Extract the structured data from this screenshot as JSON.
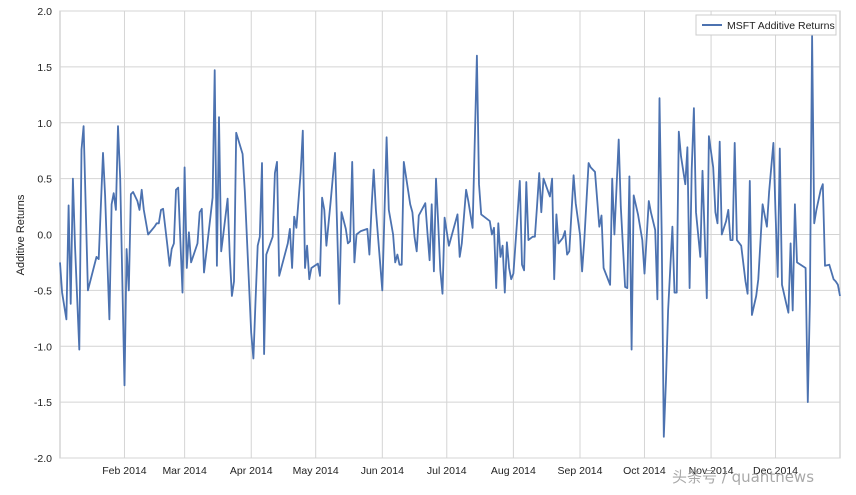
{
  "chart_data": {
    "type": "line",
    "title": "",
    "xlabel": "",
    "ylabel": "Additive Returns",
    "ylim": [
      -2.0,
      2.0
    ],
    "yticks": [
      "2.0",
      "1.5",
      "1.0",
      "0.5",
      "0.0",
      "-0.5",
      "-1.0",
      "-1.5",
      "-2.0"
    ],
    "xlim": [
      "2014-01-02",
      "2014-12-31"
    ],
    "xticks": [
      {
        "label": "Feb 2014",
        "date": "2014-02-01"
      },
      {
        "label": "Mar 2014",
        "date": "2014-03-01"
      },
      {
        "label": "Apr 2014",
        "date": "2014-04-01"
      },
      {
        "label": "May 2014",
        "date": "2014-05-01"
      },
      {
        "label": "Jun 2014",
        "date": "2014-06-01"
      },
      {
        "label": "Jul 2014",
        "date": "2014-07-01"
      },
      {
        "label": "Aug 2014",
        "date": "2014-08-01"
      },
      {
        "label": "Sep 2014",
        "date": "2014-09-01"
      },
      {
        "label": "Oct 2014",
        "date": "2014-10-01"
      },
      {
        "label": "Nov 2014",
        "date": "2014-11-01"
      },
      {
        "label": "Dec 2014",
        "date": "2014-12-01"
      }
    ],
    "grid": true,
    "legend": "top-right",
    "series": [
      {
        "name": "MSFT Additive Returns",
        "color": "#4c72b0",
        "points": [
          [
            "2014-01-02",
            -0.25
          ],
          [
            "2014-01-03",
            -0.52
          ],
          [
            "2014-01-05",
            -0.76
          ],
          [
            "2014-01-06",
            0.26
          ],
          [
            "2014-01-07",
            -0.62
          ],
          [
            "2014-01-08",
            0.5
          ],
          [
            "2014-01-09",
            -0.1
          ],
          [
            "2014-01-11",
            -1.03
          ],
          [
            "2014-01-12",
            0.76
          ],
          [
            "2014-01-13",
            0.97
          ],
          [
            "2014-01-15",
            -0.5
          ],
          [
            "2014-01-19",
            -0.2
          ],
          [
            "2014-01-20",
            -0.22
          ],
          [
            "2014-01-22",
            0.73
          ],
          [
            "2014-01-23",
            0.35
          ],
          [
            "2014-01-25",
            -0.76
          ],
          [
            "2014-01-26",
            0.27
          ],
          [
            "2014-01-27",
            0.37
          ],
          [
            "2014-01-28",
            0.22
          ],
          [
            "2014-01-29",
            0.97
          ],
          [
            "2014-01-30",
            0.5
          ],
          [
            "2014-02-01",
            -1.35
          ],
          [
            "2014-02-02",
            -0.13
          ],
          [
            "2014-02-03",
            -0.5
          ],
          [
            "2014-02-04",
            0.36
          ],
          [
            "2014-02-05",
            0.38
          ],
          [
            "2014-02-07",
            0.3
          ],
          [
            "2014-02-08",
            0.22
          ],
          [
            "2014-02-09",
            0.4
          ],
          [
            "2014-02-10",
            0.22
          ],
          [
            "2014-02-12",
            0.0
          ],
          [
            "2014-02-15",
            0.07
          ],
          [
            "2014-02-16",
            0.1
          ],
          [
            "2014-02-17",
            0.1
          ],
          [
            "2014-02-18",
            0.22
          ],
          [
            "2014-02-19",
            0.23
          ],
          [
            "2014-02-21",
            -0.1
          ],
          [
            "2014-02-22",
            -0.28
          ],
          [
            "2014-02-23",
            -0.13
          ],
          [
            "2014-02-24",
            -0.08
          ],
          [
            "2014-02-25",
            0.4
          ],
          [
            "2014-02-26",
            0.42
          ],
          [
            "2014-02-28",
            -0.52
          ],
          [
            "2014-03-01",
            0.6
          ],
          [
            "2014-03-02",
            -0.3
          ],
          [
            "2014-03-03",
            0.02
          ],
          [
            "2014-03-04",
            -0.25
          ],
          [
            "2014-03-07",
            -0.08
          ],
          [
            "2014-03-08",
            0.2
          ],
          [
            "2014-03-09",
            0.23
          ],
          [
            "2014-03-10",
            -0.34
          ],
          [
            "2014-03-11",
            -0.18
          ],
          [
            "2014-03-14",
            0.33
          ],
          [
            "2014-03-15",
            1.47
          ],
          [
            "2014-03-16",
            -0.28
          ],
          [
            "2014-03-17",
            1.05
          ],
          [
            "2014-03-18",
            -0.15
          ],
          [
            "2014-03-19",
            0.0
          ],
          [
            "2014-03-21",
            0.32
          ],
          [
            "2014-03-22",
            -0.2
          ],
          [
            "2014-03-23",
            -0.55
          ],
          [
            "2014-03-24",
            -0.42
          ],
          [
            "2014-03-25",
            0.91
          ],
          [
            "2014-03-28",
            0.72
          ],
          [
            "2014-03-29",
            0.39
          ],
          [
            "2014-04-01",
            -0.88
          ],
          [
            "2014-04-02",
            -1.11
          ],
          [
            "2014-04-03",
            -0.6
          ],
          [
            "2014-04-04",
            -0.1
          ],
          [
            "2014-04-05",
            -0.02
          ],
          [
            "2014-04-06",
            0.64
          ],
          [
            "2014-04-07",
            -1.07
          ],
          [
            "2014-04-08",
            -0.18
          ],
          [
            "2014-04-11",
            -0.02
          ],
          [
            "2014-04-12",
            0.55
          ],
          [
            "2014-04-13",
            0.65
          ],
          [
            "2014-04-14",
            -0.37
          ],
          [
            "2014-04-18",
            -0.08
          ],
          [
            "2014-04-19",
            0.05
          ],
          [
            "2014-04-20",
            -0.3
          ],
          [
            "2014-04-21",
            0.16
          ],
          [
            "2014-04-22",
            0.06
          ],
          [
            "2014-04-24",
            0.56
          ],
          [
            "2014-04-25",
            0.93
          ],
          [
            "2014-04-26",
            -0.3
          ],
          [
            "2014-04-27",
            -0.1
          ],
          [
            "2014-04-28",
            -0.4
          ],
          [
            "2014-04-29",
            -0.3
          ],
          [
            "2014-05-02",
            -0.26
          ],
          [
            "2014-05-03",
            -0.37
          ],
          [
            "2014-05-04",
            0.33
          ],
          [
            "2014-05-05",
            0.22
          ],
          [
            "2014-05-06",
            -0.1
          ],
          [
            "2014-05-08",
            0.3
          ],
          [
            "2014-05-10",
            0.73
          ],
          [
            "2014-05-12",
            -0.62
          ],
          [
            "2014-05-13",
            0.2
          ],
          [
            "2014-05-15",
            0.05
          ],
          [
            "2014-05-16",
            -0.08
          ],
          [
            "2014-05-17",
            -0.06
          ],
          [
            "2014-05-18",
            0.65
          ],
          [
            "2014-05-19",
            -0.25
          ],
          [
            "2014-05-20",
            0.0
          ],
          [
            "2014-05-22",
            0.03
          ],
          [
            "2014-05-25",
            0.05
          ],
          [
            "2014-05-26",
            -0.18
          ],
          [
            "2014-05-27",
            0.25
          ],
          [
            "2014-05-28",
            0.58
          ],
          [
            "2014-05-29",
            0.22
          ],
          [
            "2014-06-01",
            -0.5
          ],
          [
            "2014-06-02",
            0.2
          ],
          [
            "2014-06-03",
            0.87
          ],
          [
            "2014-06-04",
            0.22
          ],
          [
            "2014-06-06",
            0.0
          ],
          [
            "2014-06-07",
            -0.25
          ],
          [
            "2014-06-08",
            -0.18
          ],
          [
            "2014-06-09",
            -0.27
          ],
          [
            "2014-06-10",
            -0.27
          ],
          [
            "2014-06-11",
            0.65
          ],
          [
            "2014-06-14",
            0.27
          ],
          [
            "2014-06-15",
            0.2
          ],
          [
            "2014-06-16",
            -0.02
          ],
          [
            "2014-06-17",
            -0.15
          ],
          [
            "2014-06-18",
            0.17
          ],
          [
            "2014-06-21",
            0.28
          ],
          [
            "2014-06-22",
            0.02
          ],
          [
            "2014-06-23",
            -0.23
          ],
          [
            "2014-06-24",
            0.27
          ],
          [
            "2014-06-25",
            -0.33
          ],
          [
            "2014-06-26",
            0.5
          ],
          [
            "2014-06-27",
            0.1
          ],
          [
            "2014-06-28",
            -0.32
          ],
          [
            "2014-06-29",
            -0.53
          ],
          [
            "2014-06-30",
            0.15
          ],
          [
            "2014-07-02",
            -0.1
          ],
          [
            "2014-07-06",
            0.18
          ],
          [
            "2014-07-07",
            -0.2
          ],
          [
            "2014-07-08",
            -0.08
          ],
          [
            "2014-07-10",
            0.4
          ],
          [
            "2014-07-11",
            0.3
          ],
          [
            "2014-07-13",
            0.06
          ],
          [
            "2014-07-15",
            1.6
          ],
          [
            "2014-07-16",
            0.45
          ],
          [
            "2014-07-17",
            0.18
          ],
          [
            "2014-07-21",
            0.12
          ],
          [
            "2014-07-22",
            0.0
          ],
          [
            "2014-07-23",
            0.06
          ],
          [
            "2014-07-24",
            -0.48
          ],
          [
            "2014-07-25",
            0.1
          ],
          [
            "2014-07-26",
            -0.2
          ],
          [
            "2014-07-27",
            -0.1
          ],
          [
            "2014-07-28",
            -0.52
          ],
          [
            "2014-07-29",
            -0.07
          ],
          [
            "2014-07-30",
            -0.3
          ],
          [
            "2014-07-31",
            -0.4
          ],
          [
            "2014-08-01",
            -0.35
          ],
          [
            "2014-08-03",
            0.2
          ],
          [
            "2014-08-04",
            0.48
          ],
          [
            "2014-08-05",
            -0.27
          ],
          [
            "2014-08-06",
            -0.32
          ],
          [
            "2014-08-07",
            0.47
          ],
          [
            "2014-08-08",
            -0.05
          ],
          [
            "2014-08-10",
            -0.02
          ],
          [
            "2014-08-11",
            -0.02
          ],
          [
            "2014-08-12",
            0.25
          ],
          [
            "2014-08-13",
            0.55
          ],
          [
            "2014-08-14",
            0.2
          ],
          [
            "2014-08-15",
            0.5
          ],
          [
            "2014-08-18",
            0.34
          ],
          [
            "2014-08-19",
            0.5
          ],
          [
            "2014-08-20",
            -0.4
          ],
          [
            "2014-08-21",
            0.18
          ],
          [
            "2014-08-22",
            -0.08
          ],
          [
            "2014-08-24",
            -0.03
          ],
          [
            "2014-08-25",
            0.03
          ],
          [
            "2014-08-26",
            -0.18
          ],
          [
            "2014-08-27",
            -0.15
          ],
          [
            "2014-08-29",
            0.53
          ],
          [
            "2014-08-30",
            0.28
          ],
          [
            "2014-09-01",
            0.0
          ],
          [
            "2014-09-02",
            -0.33
          ],
          [
            "2014-09-03",
            -0.05
          ],
          [
            "2014-09-05",
            0.64
          ],
          [
            "2014-09-06",
            0.6
          ],
          [
            "2014-09-08",
            0.56
          ],
          [
            "2014-09-10",
            0.07
          ],
          [
            "2014-09-11",
            0.17
          ],
          [
            "2014-09-12",
            -0.3
          ],
          [
            "2014-09-15",
            -0.45
          ],
          [
            "2014-09-16",
            0.5
          ],
          [
            "2014-09-17",
            0.0
          ],
          [
            "2014-09-19",
            0.85
          ],
          [
            "2014-09-20",
            0.25
          ],
          [
            "2014-09-22",
            -0.47
          ],
          [
            "2014-09-23",
            -0.48
          ],
          [
            "2014-09-24",
            0.52
          ],
          [
            "2014-09-25",
            -1.03
          ],
          [
            "2014-09-26",
            0.35
          ],
          [
            "2014-09-28",
            0.18
          ],
          [
            "2014-09-30",
            -0.05
          ],
          [
            "2014-10-01",
            -0.35
          ],
          [
            "2014-10-03",
            0.3
          ],
          [
            "2014-10-04",
            0.2
          ],
          [
            "2014-10-06",
            0.04
          ],
          [
            "2014-10-07",
            -0.58
          ],
          [
            "2014-10-08",
            1.22
          ],
          [
            "2014-10-09",
            0.0
          ],
          [
            "2014-10-10",
            -1.81
          ],
          [
            "2014-10-11",
            -1.3
          ],
          [
            "2014-10-12",
            -0.68
          ],
          [
            "2014-10-14",
            0.07
          ],
          [
            "2014-10-15",
            -0.52
          ],
          [
            "2014-10-16",
            -0.52
          ],
          [
            "2014-10-17",
            0.92
          ],
          [
            "2014-10-18",
            0.7
          ],
          [
            "2014-10-20",
            0.45
          ],
          [
            "2014-10-21",
            0.78
          ],
          [
            "2014-10-22",
            -0.48
          ],
          [
            "2014-10-23",
            0.58
          ],
          [
            "2014-10-24",
            1.13
          ],
          [
            "2014-10-25",
            0.2
          ],
          [
            "2014-10-27",
            -0.2
          ],
          [
            "2014-10-28",
            0.57
          ],
          [
            "2014-10-30",
            -0.57
          ],
          [
            "2014-10-31",
            0.88
          ],
          [
            "2014-11-02",
            0.6
          ],
          [
            "2014-11-03",
            0.2
          ],
          [
            "2014-11-04",
            0.1
          ],
          [
            "2014-11-05",
            0.83
          ],
          [
            "2014-11-06",
            0.0
          ],
          [
            "2014-11-08",
            0.12
          ],
          [
            "2014-11-09",
            0.22
          ],
          [
            "2014-11-10",
            -0.05
          ],
          [
            "2014-11-11",
            -0.05
          ],
          [
            "2014-11-12",
            0.82
          ],
          [
            "2014-11-13",
            -0.05
          ],
          [
            "2014-11-15",
            -0.1
          ],
          [
            "2014-11-17",
            -0.42
          ],
          [
            "2014-11-18",
            -0.53
          ],
          [
            "2014-11-19",
            0.48
          ],
          [
            "2014-11-20",
            -0.72
          ],
          [
            "2014-11-22",
            -0.55
          ],
          [
            "2014-11-23",
            -0.4
          ],
          [
            "2014-11-25",
            0.27
          ],
          [
            "2014-11-27",
            0.07
          ],
          [
            "2014-11-28",
            0.38
          ],
          [
            "2014-11-30",
            0.82
          ],
          [
            "2014-12-01",
            0.2
          ],
          [
            "2014-12-02",
            -0.38
          ],
          [
            "2014-12-03",
            0.77
          ],
          [
            "2014-12-04",
            -0.45
          ],
          [
            "2014-12-06",
            -0.62
          ],
          [
            "2014-12-07",
            -0.7
          ],
          [
            "2014-12-08",
            -0.08
          ],
          [
            "2014-12-09",
            -0.68
          ],
          [
            "2014-12-10",
            0.27
          ],
          [
            "2014-12-11",
            -0.25
          ],
          [
            "2014-12-15",
            -0.3
          ],
          [
            "2014-12-16",
            -1.5
          ],
          [
            "2014-12-17",
            -0.6
          ],
          [
            "2014-12-18",
            1.78
          ],
          [
            "2014-12-19",
            0.1
          ],
          [
            "2014-12-20",
            0.22
          ],
          [
            "2014-12-22",
            0.4
          ],
          [
            "2014-12-23",
            0.45
          ],
          [
            "2014-12-24",
            -0.28
          ],
          [
            "2014-12-26",
            -0.27
          ],
          [
            "2014-12-28",
            -0.4
          ],
          [
            "2014-12-29",
            -0.42
          ],
          [
            "2014-12-30",
            -0.45
          ],
          [
            "2014-12-31",
            -0.55
          ]
        ]
      }
    ]
  },
  "watermark": {
    "text": "头条号 / quantnews"
  }
}
